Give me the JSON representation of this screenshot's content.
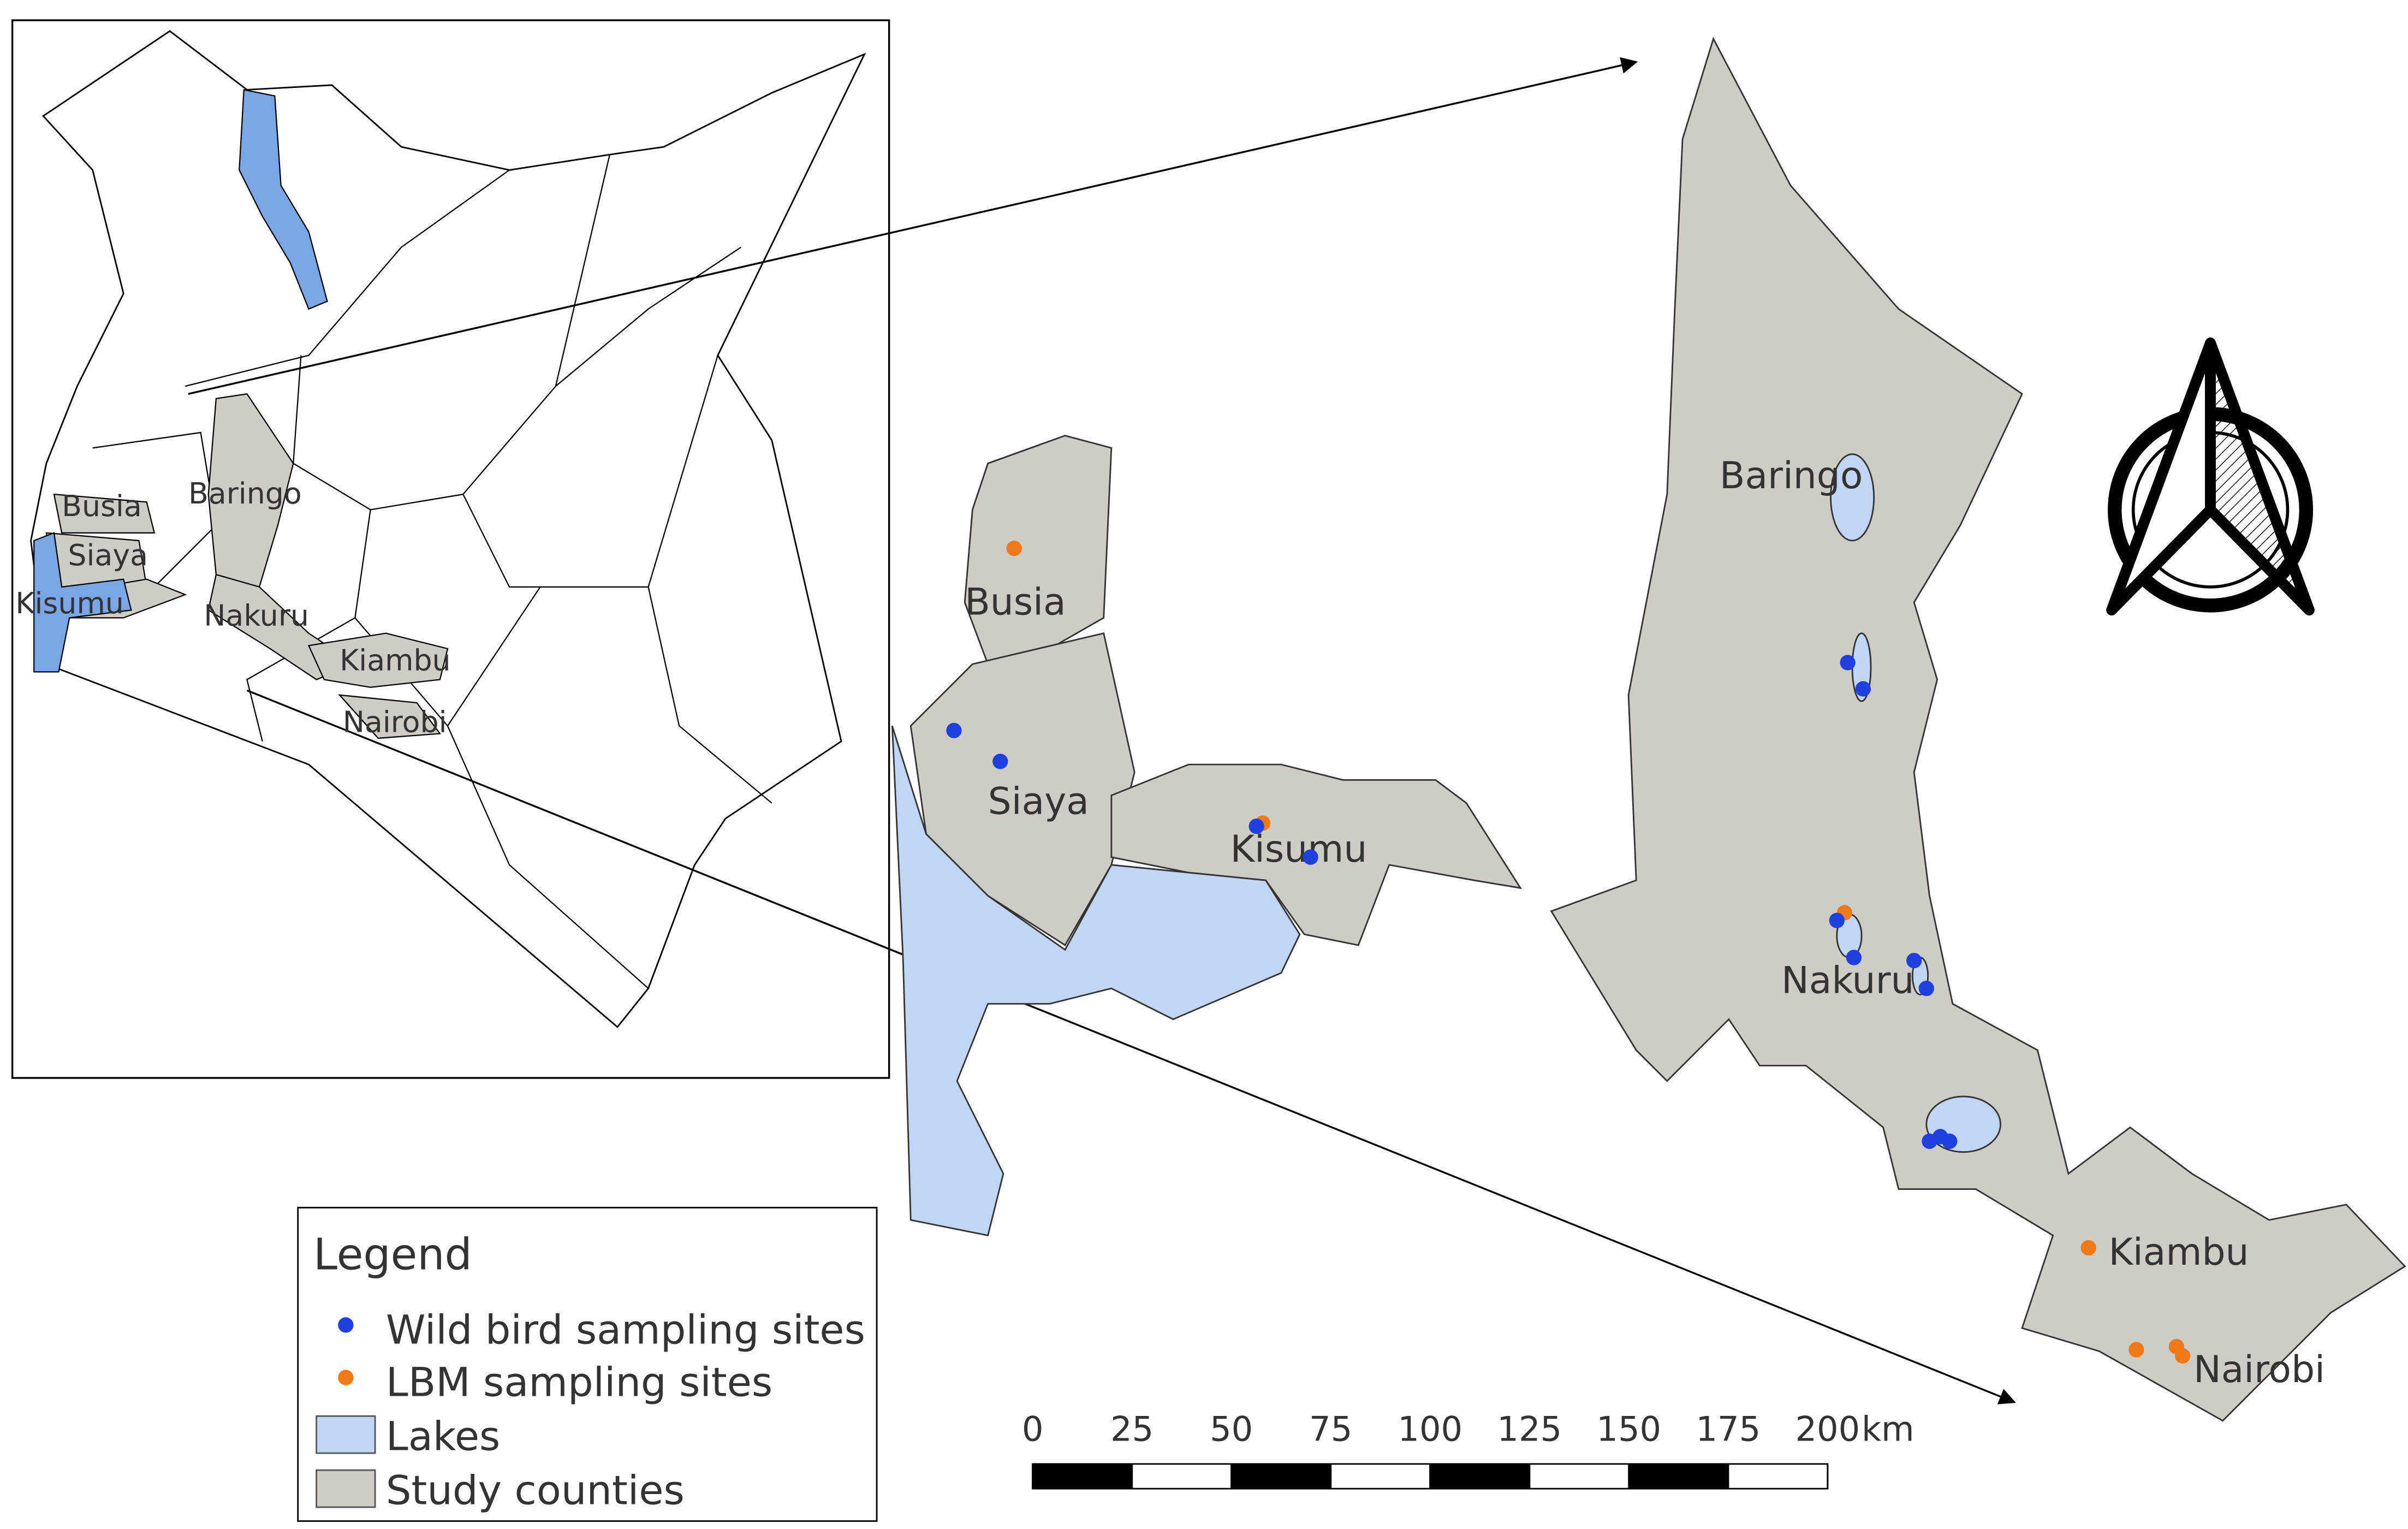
{
  "inset_map": {
    "labels": [
      "Busia",
      "Baringo",
      "Siaya",
      "Kisumu",
      "Nakuru",
      "Kiambu",
      "Nairobi"
    ]
  },
  "detail_map": {
    "labels": [
      "Busia",
      "Siaya",
      "Kisumu",
      "Baringo",
      "Nakuru",
      "Kiambu",
      "Nairobi"
    ]
  },
  "legend": {
    "title": "Legend",
    "items": [
      "Wild bird sampling sites",
      "LBM sampling sites",
      "Lakes",
      "Study counties"
    ]
  },
  "scale_bar": {
    "ticks": [
      0,
      25,
      50,
      75,
      100,
      125,
      150,
      175,
      200
    ],
    "unit": "km"
  }
}
